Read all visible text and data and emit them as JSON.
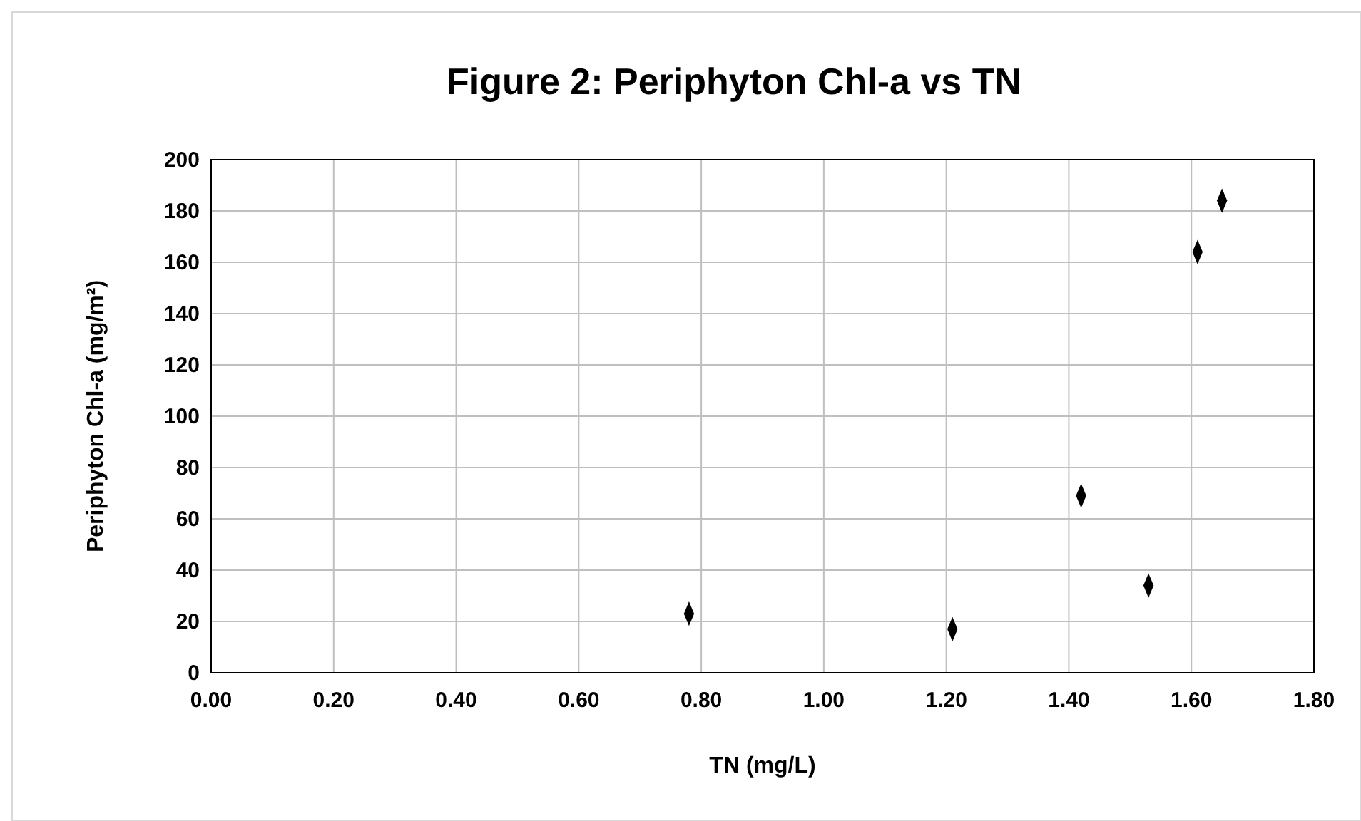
{
  "chart_data": {
    "type": "scatter",
    "title": "Figure 2: Periphyton Chl-a vs TN",
    "xlabel": "TN (mg/L)",
    "ylabel": "Periphyton Chl-a  (mg/m²)",
    "series": [
      {
        "color": "#000000",
        "x": [
          0.78,
          1.21,
          1.42,
          1.53,
          1.61,
          1.65
        ],
        "values": [
          23,
          17,
          69,
          34,
          164,
          184
        ]
      }
    ],
    "xlim": [
      0,
      1.8
    ],
    "xticks": [
      {
        "value": 0,
        "label": "0.00"
      },
      {
        "value": 0.2,
        "label": "0.20"
      },
      {
        "value": 0.4,
        "label": "0.40"
      },
      {
        "value": 0.6,
        "label": "0.60"
      },
      {
        "value": 0.8,
        "label": "0.80"
      },
      {
        "value": 1,
        "label": "1.00"
      },
      {
        "value": 1.2,
        "label": "1.20"
      },
      {
        "value": 1.4,
        "label": "1.40"
      },
      {
        "value": 1.6,
        "label": "1.60"
      },
      {
        "value": 1.8,
        "label": "1.80"
      }
    ],
    "ylim": [
      0,
      200
    ],
    "yticks": [
      0,
      20,
      40,
      60,
      80,
      100,
      120,
      140,
      160,
      180,
      200
    ],
    "grid": true,
    "marker": "diamond"
  }
}
